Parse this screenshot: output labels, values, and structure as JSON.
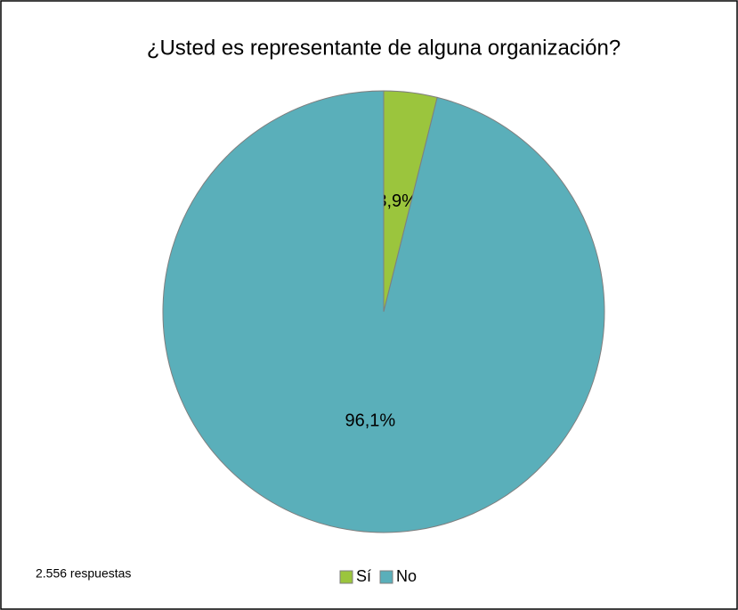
{
  "chart_data": {
    "type": "pie",
    "title": "¿Usted es representante de alguna organización?",
    "categories": [
      "Sí",
      "No"
    ],
    "values": [
      3.9,
      96.1
    ],
    "value_labels": [
      "3,9%",
      "96,1%"
    ],
    "colors": [
      "#9bc53d",
      "#5aafba"
    ],
    "legend": "bottom",
    "annotation": "2.556 respuestas"
  }
}
